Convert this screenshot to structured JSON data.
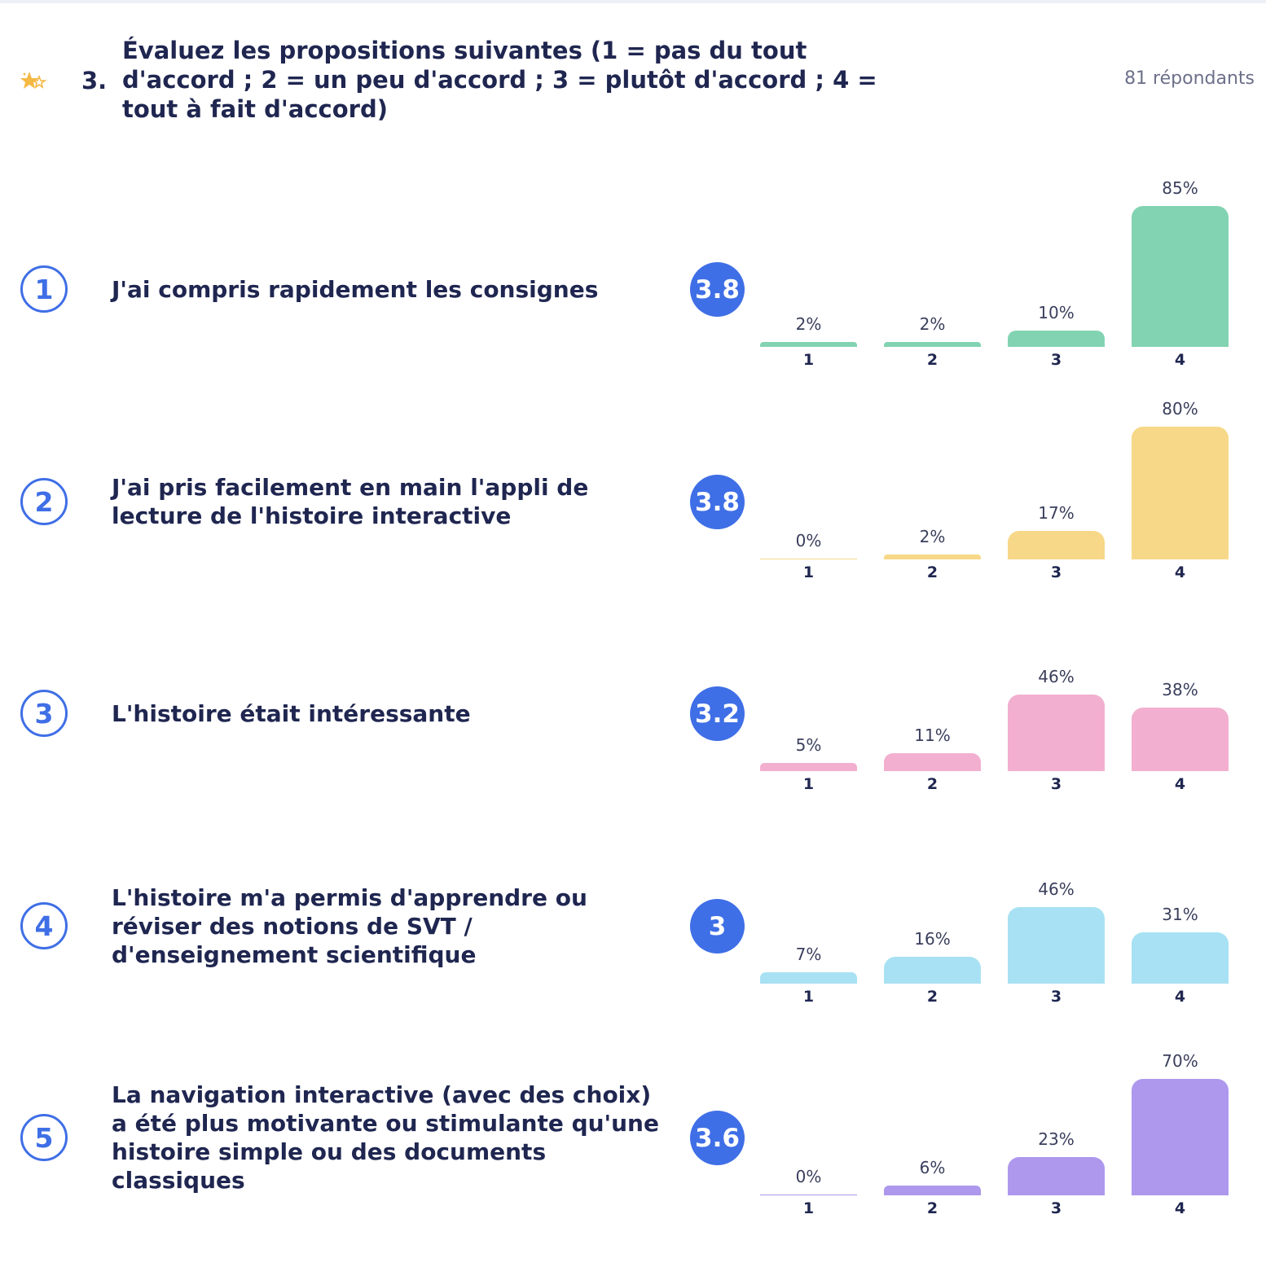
{
  "question": {
    "number": "3.",
    "title": "Évaluez les propositions suivantes (1 = pas du tout d'accord ; 2 = un peu d'accord ; 3 = plutôt d'accord ; 4 = tout à fait d'accord)",
    "respondents": "81 répondants",
    "icon": "stars-icon"
  },
  "chart_data": {
    "type": "bar",
    "categories": [
      "1",
      "2",
      "3",
      "4"
    ],
    "rows": [
      {
        "index": "1",
        "label": "J'ai compris rapidement les consignes",
        "average": "3.8",
        "color": "#82d3b2",
        "values": [
          2,
          2,
          10,
          85
        ]
      },
      {
        "index": "2",
        "label": "J'ai pris facilement en main l'appli de lecture de l'histoire interactive",
        "average": "3.8",
        "color": "#f7d888",
        "values": [
          0,
          2,
          17,
          80
        ]
      },
      {
        "index": "3",
        "label": "L'histoire était intéressante",
        "average": "3.2",
        "color": "#f2afd0",
        "values": [
          5,
          11,
          46,
          38
        ]
      },
      {
        "index": "4",
        "label": "L'histoire m'a permis d'apprendre ou réviser des notions de SVT / d'enseignement scientifique",
        "average": "3",
        "color": "#a8e1f3",
        "values": [
          7,
          16,
          46,
          31
        ]
      },
      {
        "index": "5",
        "label": "La navigation interactive (avec des choix) a été plus motivante ou stimulante qu'une histoire simple ou des documents classiques",
        "average": "3.6",
        "color": "#ad98ed",
        "values": [
          0,
          6,
          23,
          70
        ]
      }
    ],
    "value_suffix": "%",
    "accent_color": "#3f6fe6"
  }
}
